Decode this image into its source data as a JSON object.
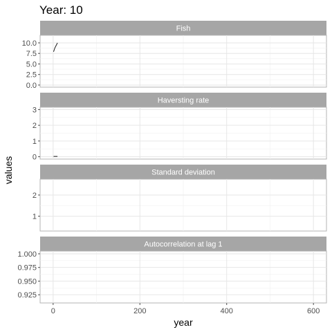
{
  "chart_data": {
    "type": "line",
    "title": "Year: 10",
    "xlabel": "year",
    "ylabel": "values",
    "xlim": [
      -30,
      630
    ],
    "x_ticks": [
      0,
      200,
      400,
      600
    ],
    "x_tick_labels": [
      "0",
      "200",
      "400",
      "600"
    ],
    "grid": true,
    "panels": [
      {
        "strip": "Fish",
        "ylim": [
          -0.5,
          11.8
        ],
        "y_ticks": [
          0,
          2.5,
          5,
          7.5,
          10
        ],
        "y_tick_labels": [
          "0.0",
          "2.5",
          "5.0",
          "7.5",
          "10.0"
        ],
        "x": [
          1,
          2,
          3,
          4,
          5,
          6,
          7,
          8,
          9,
          10
        ],
        "values": [
          7.9,
          8.2,
          8.5,
          8.8,
          9.0,
          9.2,
          9.4,
          9.6,
          9.8,
          10.0
        ]
      },
      {
        "strip": "Haversting rate",
        "ylim": [
          -0.15,
          3.15
        ],
        "y_ticks": [
          0,
          1,
          2,
          3
        ],
        "y_tick_labels": [
          "0",
          "1",
          "2",
          "3"
        ],
        "x": [
          1,
          2,
          3,
          4,
          5,
          6,
          7,
          8,
          9,
          10
        ],
        "values": [
          0.02,
          0.02,
          0.02,
          0.02,
          0.02,
          0.02,
          0.02,
          0.02,
          0.02,
          0.02
        ]
      },
      {
        "strip": "Standard deviation",
        "ylim": [
          0.3,
          2.75
        ],
        "y_ticks": [
          1,
          2
        ],
        "y_tick_labels": [
          "1",
          "2"
        ],
        "x": [],
        "values": []
      },
      {
        "strip": "Autocorrelation at lag 1",
        "ylim": [
          0.91,
          1.005
        ],
        "y_ticks": [
          0.925,
          0.95,
          0.975,
          1.0
        ],
        "y_tick_labels": [
          "0.925",
          "0.950",
          "0.975",
          "1.000"
        ],
        "x": [],
        "values": []
      }
    ]
  }
}
